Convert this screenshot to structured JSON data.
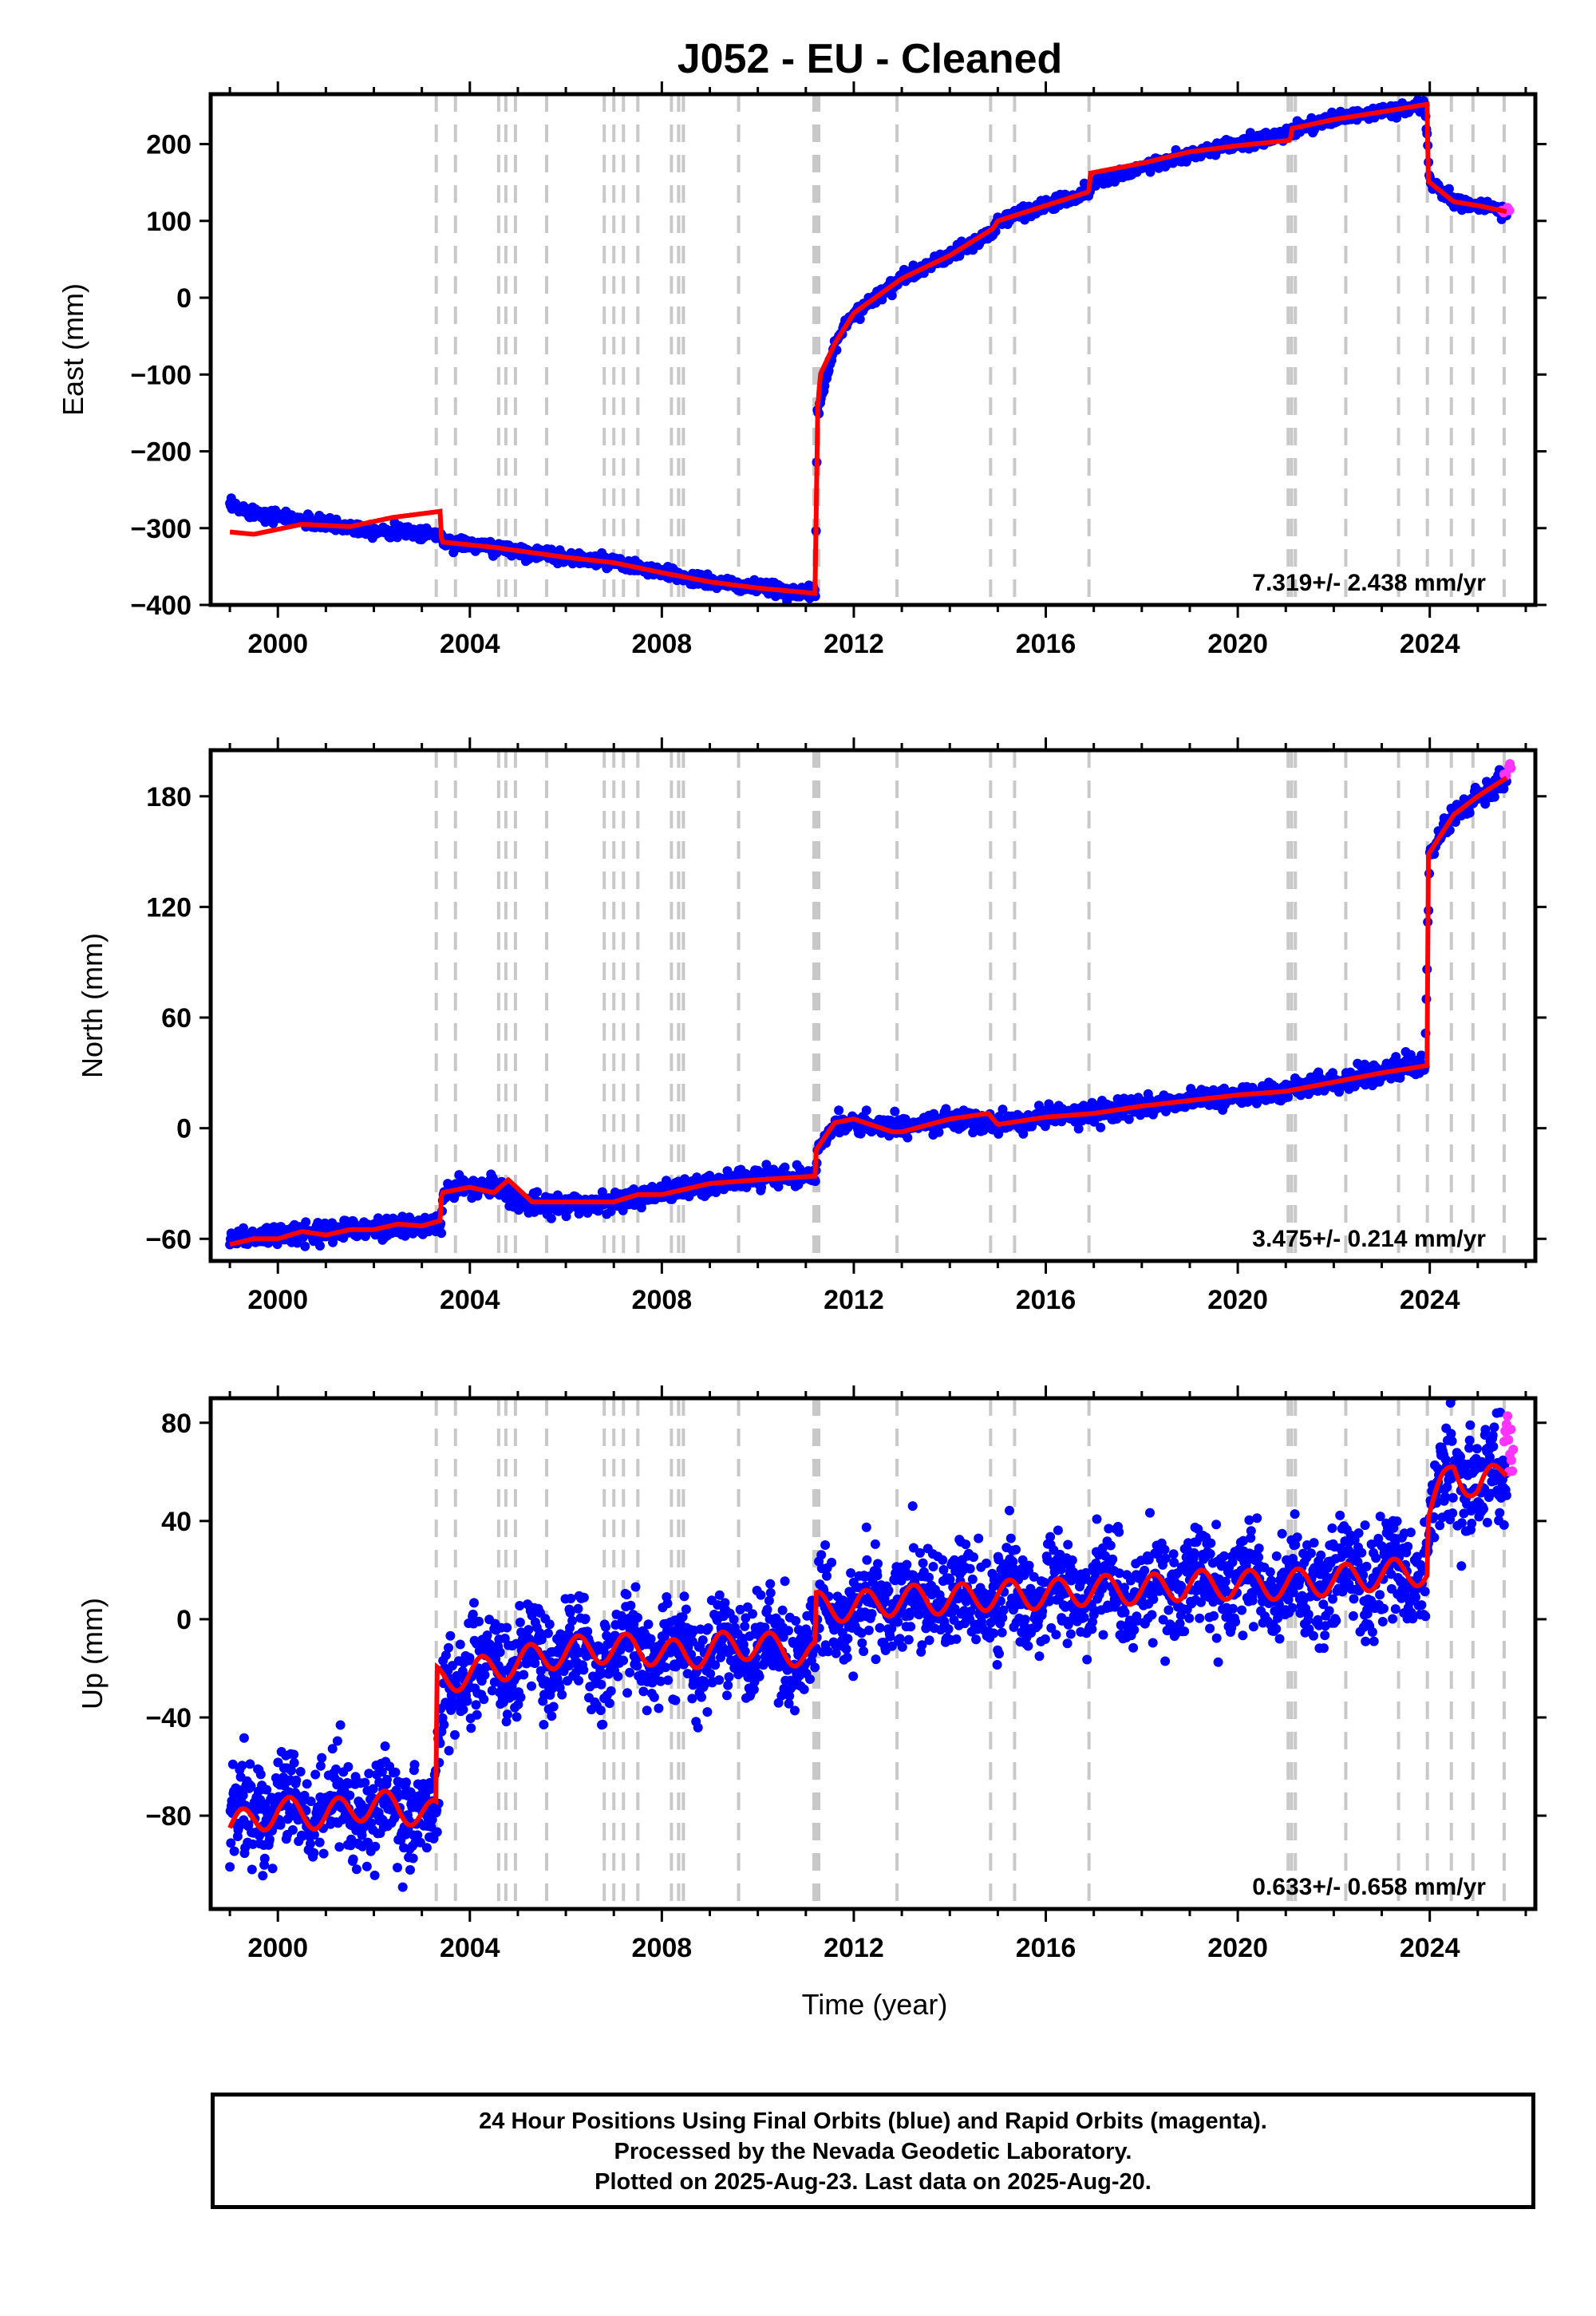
{
  "title": "J052  - EU - Cleaned",
  "xlabel": "Time (year)",
  "footer": [
    "24 Hour Positions Using Final Orbits (blue) and Rapid Orbits (magenta).",
    "Processed by the Nevada Geodetic Laboratory.",
    "Plotted on 2025-Aug-23. Last data on 2025-Aug-20."
  ],
  "colors": {
    "final": "#0000ff",
    "rapid": "#ff33ff",
    "model": "#ff0000",
    "event": "#c8c8c8"
  },
  "chart_data": [
    {
      "type": "scatter",
      "ylabel": "East (mm)",
      "xlim": [
        1998.6,
        2026.2
      ],
      "ylim": [
        -400,
        265
      ],
      "yticks": [
        200,
        100,
        0,
        -100,
        -200,
        -300,
        -400
      ],
      "xticks": [
        2000,
        2004,
        2008,
        2012,
        2016,
        2020,
        2024
      ],
      "rate": "7.319+/- 2.438 mm/yr",
      "series_final": [
        [
          1999.0,
          -272
        ],
        [
          2000.0,
          -285
        ],
        [
          2001.0,
          -295
        ],
        [
          2002.0,
          -302
        ],
        [
          2003.4,
          -308
        ],
        [
          2003.45,
          -318
        ],
        [
          2004.5,
          -325
        ],
        [
          2006.0,
          -338
        ],
        [
          2007.0,
          -345
        ],
        [
          2008.0,
          -358
        ],
        [
          2009.0,
          -370
        ],
        [
          2010.0,
          -378
        ],
        [
          2011.2,
          -385
        ],
        [
          2011.24,
          -150
        ],
        [
          2011.6,
          -60
        ],
        [
          2012.0,
          -20
        ],
        [
          2013.0,
          25
        ],
        [
          2014.0,
          55
        ],
        [
          2014.9,
          85
        ],
        [
          2015.0,
          100
        ],
        [
          2016.0,
          120
        ],
        [
          2016.9,
          138
        ],
        [
          2017.0,
          150
        ],
        [
          2018.0,
          170
        ],
        [
          2019.0,
          185
        ],
        [
          2020.0,
          200
        ],
        [
          2021.0,
          212
        ],
        [
          2021.2,
          220
        ],
        [
          2022.0,
          232
        ],
        [
          2023.0,
          242
        ],
        [
          2023.9,
          250
        ],
        [
          2024.0,
          152
        ],
        [
          2024.5,
          125
        ],
        [
          2025.0,
          120
        ],
        [
          2025.6,
          112
        ]
      ],
      "series_rapid": [
        [
          2025.5,
          112
        ],
        [
          2025.62,
          115
        ]
      ],
      "model": [
        [
          1999.0,
          -305
        ],
        [
          1999.5,
          -308
        ],
        [
          2000.5,
          -295
        ],
        [
          2001.5,
          -298
        ],
        [
          2002.4,
          -286
        ],
        [
          2003.4,
          -278
        ],
        [
          2003.41,
          -318
        ],
        [
          2004.5,
          -325
        ],
        [
          2006.0,
          -338
        ],
        [
          2007.0,
          -345
        ],
        [
          2008.0,
          -358
        ],
        [
          2009.0,
          -370
        ],
        [
          2010.0,
          -378
        ],
        [
          2011.2,
          -385
        ],
        [
          2011.24,
          -150
        ],
        [
          2011.3,
          -100
        ],
        [
          2011.6,
          -60
        ],
        [
          2012.0,
          -20
        ],
        [
          2013.0,
          25
        ],
        [
          2014.0,
          55
        ],
        [
          2014.9,
          90
        ],
        [
          2015.0,
          100
        ],
        [
          2016.0,
          120
        ],
        [
          2016.9,
          138
        ],
        [
          2016.91,
          162
        ],
        [
          2018.0,
          175
        ],
        [
          2019.0,
          190
        ],
        [
          2020.0,
          198
        ],
        [
          2021.1,
          205
        ],
        [
          2021.11,
          220
        ],
        [
          2022.0,
          232
        ],
        [
          2023.0,
          242
        ],
        [
          2023.95,
          252
        ],
        [
          2023.96,
          152
        ],
        [
          2024.5,
          125
        ],
        [
          2025.0,
          120
        ],
        [
          2025.6,
          112
        ]
      ]
    },
    {
      "type": "scatter",
      "ylabel": "North (mm)",
      "xlim": [
        1998.6,
        2026.2
      ],
      "ylim": [
        -72,
        205
      ],
      "yticks": [
        180,
        120,
        60,
        0,
        -60
      ],
      "xticks": [
        2000,
        2004,
        2008,
        2012,
        2016,
        2020,
        2024
      ],
      "rate": "3.475+/- 0.214 mm/yr",
      "series_final": [
        [
          1999.0,
          -60
        ],
        [
          2000.0,
          -58
        ],
        [
          2001.0,
          -56
        ],
        [
          2002.0,
          -54
        ],
        [
          2003.4,
          -52
        ],
        [
          2003.45,
          -35
        ],
        [
          2004.5,
          -30
        ],
        [
          2005.0,
          -40
        ],
        [
          2006.0,
          -42
        ],
        [
          2007.0,
          -40
        ],
        [
          2008.0,
          -35
        ],
        [
          2009.0,
          -30
        ],
        [
          2010.0,
          -27
        ],
        [
          2011.2,
          -25
        ],
        [
          2011.25,
          -10
        ],
        [
          2011.6,
          3
        ],
        [
          2012.0,
          3
        ],
        [
          2013.0,
          0
        ],
        [
          2014.0,
          5
        ],
        [
          2015.0,
          2
        ],
        [
          2016.0,
          6
        ],
        [
          2017.0,
          8
        ],
        [
          2018.0,
          12
        ],
        [
          2019.0,
          15
        ],
        [
          2020.0,
          18
        ],
        [
          2021.0,
          20
        ],
        [
          2022.0,
          25
        ],
        [
          2023.0,
          30
        ],
        [
          2023.9,
          35
        ],
        [
          2024.0,
          150
        ],
        [
          2024.5,
          170
        ],
        [
          2025.0,
          180
        ],
        [
          2025.6,
          190
        ]
      ],
      "series_rapid": [
        [
          2025.55,
          192
        ],
        [
          2025.65,
          196
        ]
      ],
      "model": [
        [
          1999.0,
          -63
        ],
        [
          1999.5,
          -60
        ],
        [
          2000.0,
          -60
        ],
        [
          2000.5,
          -56
        ],
        [
          2001.0,
          -58
        ],
        [
          2001.5,
          -55
        ],
        [
          2002.0,
          -55
        ],
        [
          2002.5,
          -52
        ],
        [
          2003.0,
          -53
        ],
        [
          2003.4,
          -50
        ],
        [
          2003.41,
          -35
        ],
        [
          2004.0,
          -32
        ],
        [
          2004.5,
          -35
        ],
        [
          2004.8,
          -28
        ],
        [
          2005.3,
          -40
        ],
        [
          2006.0,
          -40
        ],
        [
          2007.0,
          -40
        ],
        [
          2007.5,
          -36
        ],
        [
          2008.0,
          -36
        ],
        [
          2009.0,
          -30
        ],
        [
          2010.0,
          -28
        ],
        [
          2011.2,
          -26
        ],
        [
          2011.21,
          -12
        ],
        [
          2011.6,
          3
        ],
        [
          2012.0,
          5
        ],
        [
          2012.8,
          -2
        ],
        [
          2013.0,
          -2
        ],
        [
          2014.0,
          5
        ],
        [
          2014.8,
          8
        ],
        [
          2015.0,
          2
        ],
        [
          2016.0,
          6
        ],
        [
          2017.0,
          8
        ],
        [
          2018.0,
          12
        ],
        [
          2019.0,
          15
        ],
        [
          2020.0,
          18
        ],
        [
          2021.0,
          20
        ],
        [
          2022.0,
          25
        ],
        [
          2023.0,
          30
        ],
        [
          2023.95,
          34
        ],
        [
          2023.96,
          148
        ],
        [
          2024.5,
          170
        ],
        [
          2025.0,
          180
        ],
        [
          2025.6,
          190
        ]
      ]
    },
    {
      "type": "scatter",
      "ylabel": "Up (mm)",
      "xlim": [
        1998.6,
        2026.2
      ],
      "ylim": [
        -118,
        90
      ],
      "yticks": [
        80,
        40,
        0,
        -40,
        -80
      ],
      "xticks": [
        2000,
        2004,
        2008,
        2012,
        2016,
        2020,
        2024
      ],
      "rate": "0.633+/- 0.658 mm/yr",
      "series_final": [
        [
          1999.0,
          -80
        ],
        [
          2000.0,
          -78
        ],
        [
          2001.0,
          -78
        ],
        [
          2002.0,
          -76
        ],
        [
          2003.3,
          -80
        ],
        [
          2003.5,
          -22
        ],
        [
          2004.5,
          -20
        ],
        [
          2005.5,
          -15
        ],
        [
          2006.5,
          -12
        ],
        [
          2007.5,
          -12
        ],
        [
          2008.5,
          -15
        ],
        [
          2009.5,
          -10
        ],
        [
          2010.5,
          -12
        ],
        [
          2011.2,
          -15
        ],
        [
          2011.3,
          5
        ],
        [
          2012.0,
          5
        ],
        [
          2013.0,
          8
        ],
        [
          2014.0,
          8
        ],
        [
          2015.0,
          10
        ],
        [
          2016.0,
          10
        ],
        [
          2017.0,
          12
        ],
        [
          2018.0,
          12
        ],
        [
          2019.0,
          14
        ],
        [
          2020.0,
          14
        ],
        [
          2021.0,
          14
        ],
        [
          2022.0,
          16
        ],
        [
          2023.0,
          16
        ],
        [
          2023.9,
          18
        ],
        [
          2024.0,
          40
        ],
        [
          2024.5,
          62
        ],
        [
          2025.0,
          55
        ],
        [
          2025.6,
          62
        ]
      ],
      "series_rapid": [
        [
          2025.55,
          75
        ],
        [
          2025.6,
          80
        ],
        [
          2025.65,
          70
        ],
        [
          2025.7,
          65
        ]
      ],
      "model": [
        [
          1999.0,
          -85
        ],
        [
          2000.0,
          -78
        ],
        [
          2001.0,
          -80
        ],
        [
          2002.0,
          -75
        ],
        [
          2003.3,
          -80
        ],
        [
          2003.31,
          -25
        ],
        [
          2004.5,
          -20
        ],
        [
          2005.5,
          -15
        ],
        [
          2006.5,
          -12
        ],
        [
          2007.5,
          -12
        ],
        [
          2008.5,
          -15
        ],
        [
          2009.5,
          -10
        ],
        [
          2010.5,
          -12
        ],
        [
          2011.2,
          -15
        ],
        [
          2011.21,
          5
        ],
        [
          2012.0,
          5
        ],
        [
          2013.0,
          8
        ],
        [
          2014.0,
          8
        ],
        [
          2015.0,
          10
        ],
        [
          2016.0,
          10
        ],
        [
          2017.0,
          12
        ],
        [
          2018.0,
          12
        ],
        [
          2019.0,
          14
        ],
        [
          2020.0,
          14
        ],
        [
          2021.0,
          14
        ],
        [
          2022.0,
          16
        ],
        [
          2023.0,
          18
        ],
        [
          2023.95,
          20
        ],
        [
          2023.96,
          42
        ],
        [
          2024.5,
          62
        ],
        [
          2025.0,
          52
        ],
        [
          2025.6,
          62
        ]
      ]
    }
  ],
  "event_lines": [
    2003.3,
    2003.7,
    2004.6,
    2004.75,
    2004.95,
    2005.6,
    2006.8,
    2007.0,
    2007.2,
    2007.5,
    2008.2,
    2008.35,
    2008.45,
    2009.6,
    2011.17,
    2011.22,
    2011.27,
    2012.9,
    2014.85,
    2015.35,
    2016.9,
    2021.05,
    2021.12,
    2021.2,
    2022.25,
    2023.35,
    2023.95,
    2024.45,
    2024.9,
    2025.55
  ]
}
